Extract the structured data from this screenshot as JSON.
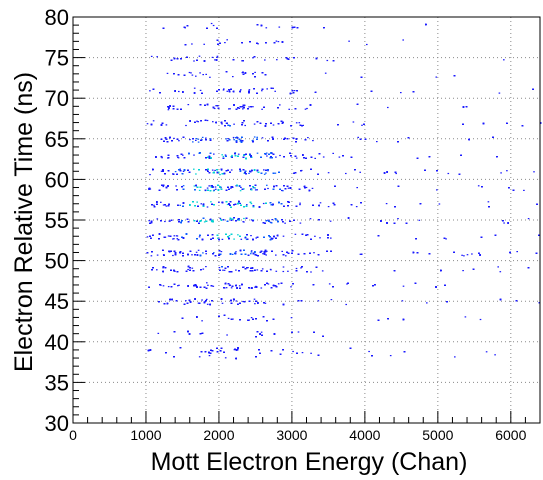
{
  "chart_data": {
    "type": "heatmap",
    "title": "",
    "xlabel": "Mott Electron Energy (Chan)",
    "ylabel": "Electron Relative Time (ns)",
    "xlim": [
      0,
      6400
    ],
    "ylim": [
      30,
      80
    ],
    "x_ticks": [
      0,
      1000,
      2000,
      3000,
      4000,
      5000,
      6000
    ],
    "y_ticks": [
      30,
      35,
      40,
      45,
      50,
      55,
      60,
      65,
      70,
      75,
      80
    ],
    "grid": true,
    "grid_style": "dotted",
    "colors": {
      "low": "#1a1aff",
      "mid": "#0a5cff",
      "high": "#00d2d2",
      "axis": "#000000",
      "grid": "#8a8a8a"
    },
    "populated_x_range": [
      1000,
      6400
    ],
    "peak_x": 2100,
    "time_bands": [
      39,
      41,
      43,
      45,
      47,
      49,
      51,
      53,
      55,
      57,
      59,
      61,
      63,
      65,
      67,
      69,
      71,
      73,
      75,
      77,
      79
    ]
  }
}
